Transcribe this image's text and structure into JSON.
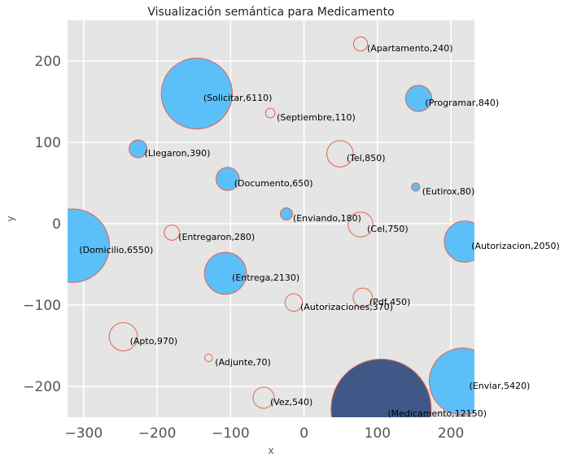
{
  "chart_data": {
    "type": "scatter",
    "title": "Visualización semántica para Medicamento",
    "xlabel": "x",
    "ylabel": "y",
    "xlim": [
      -322,
      232
    ],
    "ylim": [
      -238,
      250
    ],
    "xticks": [
      -300,
      -200,
      -100,
      0,
      100,
      200
    ],
    "yticks": [
      -200,
      -100,
      0,
      100,
      200
    ],
    "x_tick_labels": [
      "−300",
      "−200",
      "−100",
      "0",
      "100",
      "200"
    ],
    "y_tick_labels": [
      "−200",
      "−100",
      "0",
      "100",
      "200"
    ],
    "grid": true,
    "colors": {
      "background": "#e5e5e5",
      "grid": "#ffffff",
      "fill": "#5bc0f8",
      "empty_fill": "#e5e5e5",
      "edge": "#e8604c",
      "highlight_fill": "#3f5888"
    },
    "points": [
      {
        "word": "Apartamento",
        "count": 240,
        "x": 77,
        "y": 221,
        "filled": false,
        "label": "(Apartamento,240)"
      },
      {
        "word": "Solicitar",
        "count": 6110,
        "x": -146,
        "y": 160,
        "filled": true,
        "label": "(Solicitar,6110)"
      },
      {
        "word": "Programar",
        "count": 840,
        "x": 156,
        "y": 154,
        "filled": true,
        "label": "(Programar,840)"
      },
      {
        "word": "Septiembre",
        "count": 110,
        "x": -46,
        "y": 136,
        "filled": false,
        "label": "(Septiembre,110)"
      },
      {
        "word": "Llegaron",
        "count": 390,
        "x": -226,
        "y": 92,
        "filled": true,
        "label": "(Llegaron,390)"
      },
      {
        "word": "Tel",
        "count": 850,
        "x": 49,
        "y": 86,
        "filled": false,
        "label": "(Tel,850)"
      },
      {
        "word": "Documento",
        "count": 650,
        "x": -104,
        "y": 55,
        "filled": true,
        "label": "(Documento,650)"
      },
      {
        "word": "Eutirox",
        "count": 80,
        "x": 152,
        "y": 45,
        "filled": true,
        "label": "(Eutirox,80)"
      },
      {
        "word": "Enviando",
        "count": 180,
        "x": -24,
        "y": 12,
        "filled": true,
        "label": "(Enviando,180)"
      },
      {
        "word": "Cel",
        "count": 750,
        "x": 77,
        "y": -1,
        "filled": false,
        "label": "(Cel,750)"
      },
      {
        "word": "Entregaron",
        "count": 280,
        "x": -180,
        "y": -11,
        "filled": false,
        "label": "(Entregaron,280)"
      },
      {
        "word": "Domicilio",
        "count": 6550,
        "x": -315,
        "y": -27,
        "filled": true,
        "label": "(Domicilio,6550)"
      },
      {
        "word": "Autorizacion",
        "count": 2050,
        "x": 219,
        "y": -22,
        "filled": true,
        "label": "(Autorizacion,2050)"
      },
      {
        "word": "Entrega",
        "count": 2130,
        "x": -107,
        "y": -61,
        "filled": true,
        "label": "(Entrega,2130)"
      },
      {
        "word": "Pdf",
        "count": 450,
        "x": 80,
        "y": -91,
        "filled": false,
        "label": "(Pdf,450)"
      },
      {
        "word": "Autorizaciones",
        "count": 370,
        "x": -14,
        "y": -97,
        "filled": false,
        "label": "(Autorizaciones,370)"
      },
      {
        "word": "Apto",
        "count": 970,
        "x": -246,
        "y": -139,
        "filled": false,
        "label": "(Apto,970)"
      },
      {
        "word": "Adjunte",
        "count": 70,
        "x": -130,
        "y": -165,
        "filled": false,
        "label": "(Adjunte,70)"
      },
      {
        "word": "Enviar",
        "count": 5420,
        "x": 216,
        "y": -194,
        "filled": true,
        "label": "(Enviar,5420)"
      },
      {
        "word": "Vez",
        "count": 540,
        "x": -55,
        "y": -214,
        "filled": false,
        "label": "(Vez,540)"
      },
      {
        "word": "Medicamento",
        "count": 12150,
        "x": 105,
        "y": -228,
        "filled": true,
        "highlight": true,
        "label": "(Medicamento,12150)"
      }
    ]
  }
}
